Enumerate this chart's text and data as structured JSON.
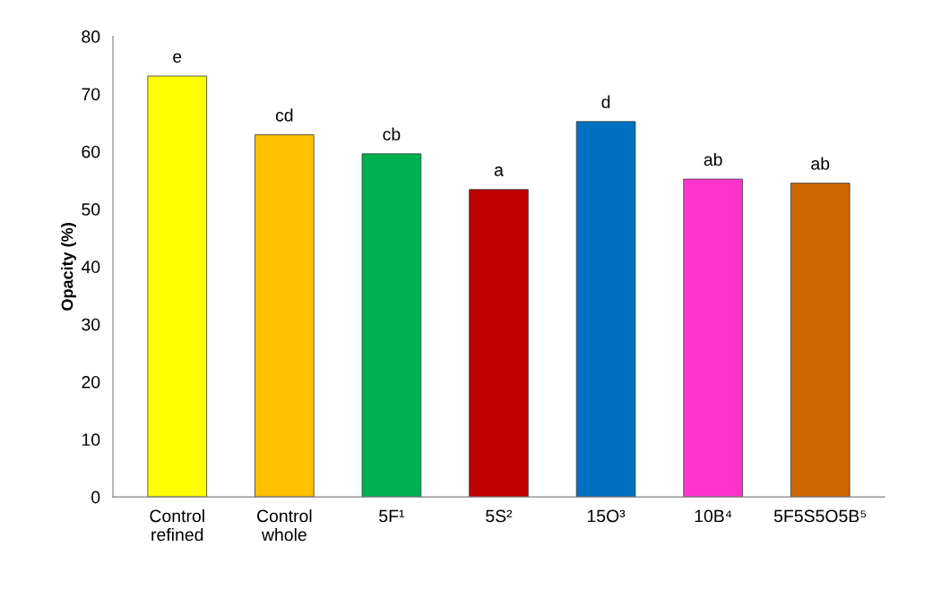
{
  "chart_data": {
    "type": "bar",
    "ylabel": "Opacity (%)",
    "categories": [
      "Control\nrefined",
      "Control\nwhole",
      "5F¹",
      "5S²",
      "15O³",
      "10B⁴",
      "5F5S5O5B⁵"
    ],
    "values": [
      73.1,
      62.9,
      59.6,
      53.4,
      65.2,
      55.2,
      54.5
    ],
    "colors": [
      "#ffff00",
      "#ffc000",
      "#00b050",
      "#c00000",
      "#0070c0",
      "#ff33cc",
      "#cc6600"
    ],
    "ylim": [
      0,
      80
    ],
    "yticks": [
      0,
      10,
      20,
      30,
      40,
      50,
      60,
      70,
      80
    ],
    "grid": false,
    "annotations": [
      {
        "text": "e",
        "x": "Control\nrefined",
        "y": 73.1
      },
      {
        "text": "cd",
        "x": "Control\nwhole",
        "y": 62.9
      },
      {
        "text": "cb",
        "x": "5F¹",
        "y": 59.6
      },
      {
        "text": "a",
        "x": "5S²",
        "y": 53.4
      },
      {
        "text": "d",
        "x": "15O³",
        "y": 65.2
      },
      {
        "text": "ab",
        "x": "10B⁴",
        "y": 55.2
      },
      {
        "text": "ab",
        "x": "5F5S5O5B⁵",
        "y": 54.5
      }
    ]
  }
}
